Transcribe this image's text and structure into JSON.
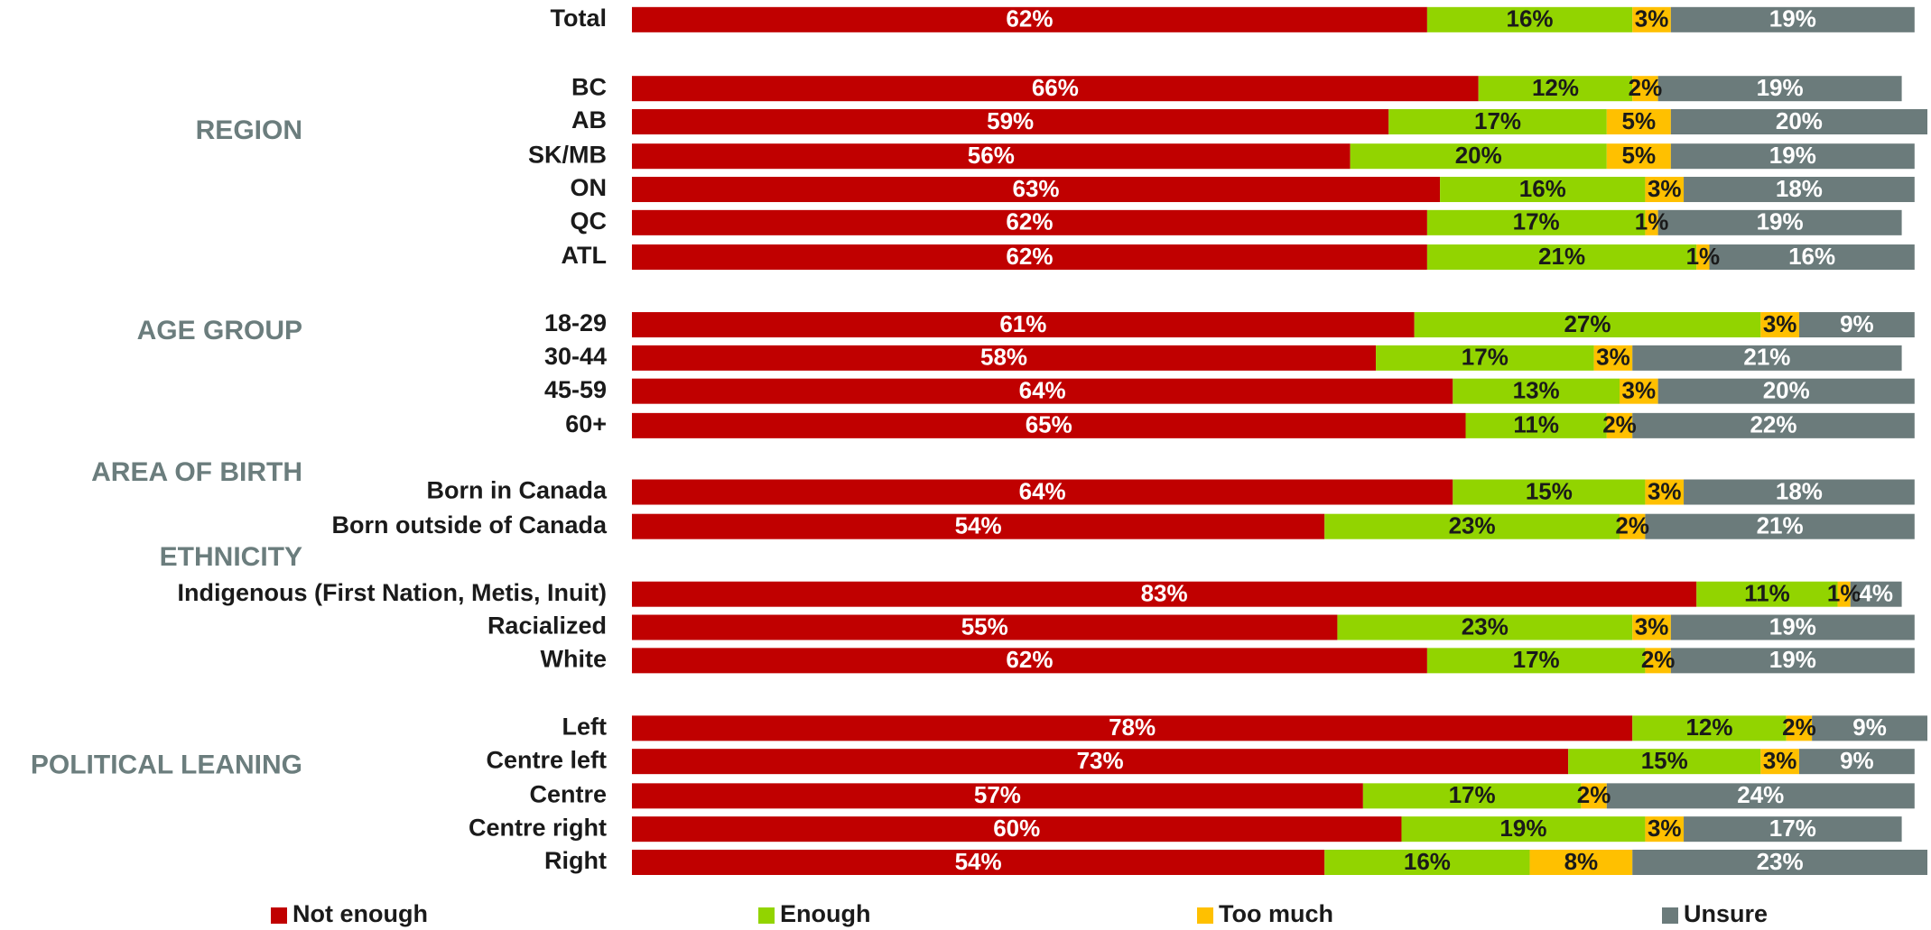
{
  "chart_data": {
    "type": "stacked_bar",
    "categories": [
      "Total",
      "BC",
      "AB",
      "SK/MB",
      "ON",
      "QC",
      "ATL",
      "18-29",
      "30-44",
      "45-59",
      "60+",
      "Born in Canada",
      "Born outside of Canada",
      "Indigenous (First Nation, Metis, Inuit)",
      "Racialized",
      "White",
      "Left",
      "Centre left",
      "Centre",
      "Centre right",
      "Right"
    ],
    "groups": [
      "REGION",
      "AGE GROUP",
      "AREA OF BIRTH",
      "ETHNICITY",
      "POLITICAL LEANING"
    ],
    "series": [
      {
        "name": "Not enough",
        "color": "#c00000",
        "label_color": "#ffffff",
        "values": [
          62,
          66,
          59,
          56,
          63,
          62,
          62,
          61,
          58,
          64,
          65,
          64,
          54,
          83,
          55,
          62,
          78,
          73,
          57,
          60,
          54
        ],
        "value_labels": [
          "62%",
          "66%",
          "59%",
          "56%",
          "63%",
          "62%",
          "62%",
          "61%",
          "58%",
          "64%",
          "65%",
          "64%",
          "54%",
          "83%",
          "55%",
          "62%",
          "78%",
          "73%",
          "57%",
          "60%",
          "54%"
        ]
      },
      {
        "name": "Enough",
        "color": "#92d400",
        "label_color": "#1a1a1a",
        "values": [
          16,
          12,
          17,
          20,
          16,
          17,
          21,
          27,
          17,
          13,
          11,
          15,
          23,
          11,
          23,
          17,
          12,
          15,
          17,
          19,
          16
        ],
        "value_labels": [
          "16%",
          "12%",
          "17%",
          "20%",
          "16%",
          "17%",
          "21%",
          "27%",
          "17%",
          "13%",
          "11%",
          "15%",
          "23%",
          "11%",
          "23%",
          "17%",
          "12%",
          "15%",
          "17%",
          "19%",
          "16%"
        ]
      },
      {
        "name": "Too much",
        "color": "#ffc000",
        "label_color": "#1a1a1a",
        "values": [
          3,
          2,
          5,
          5,
          3,
          1,
          1,
          3,
          3,
          3,
          2,
          3,
          2,
          1,
          3,
          2,
          2,
          3,
          2,
          3,
          8
        ],
        "value_labels": [
          "3%",
          "2%",
          "5%",
          "5%",
          "3%",
          "1%",
          "1%",
          "3%",
          "3%",
          "3%",
          "2%",
          "3%",
          "2%",
          "1%",
          "3%",
          "2%",
          "2%",
          "3%",
          "2%",
          "3%",
          "8%"
        ]
      },
      {
        "name": "Unsure",
        "color": "#6b7b7b",
        "label_color": "#ffffff",
        "values": [
          19,
          19,
          20,
          19,
          18,
          19,
          16,
          9,
          21,
          20,
          22,
          18,
          21,
          4,
          19,
          19,
          9,
          9,
          24,
          17,
          23
        ],
        "value_labels": [
          "19%",
          "19%",
          "20%",
          "19%",
          "18%",
          "19%",
          "16%",
          "9%",
          "21%",
          "20%",
          "22%",
          "18%",
          "21%",
          "4%",
          "19%",
          "19%",
          "9%",
          "9%",
          "24%",
          "17%",
          "23%"
        ]
      }
    ]
  }
}
